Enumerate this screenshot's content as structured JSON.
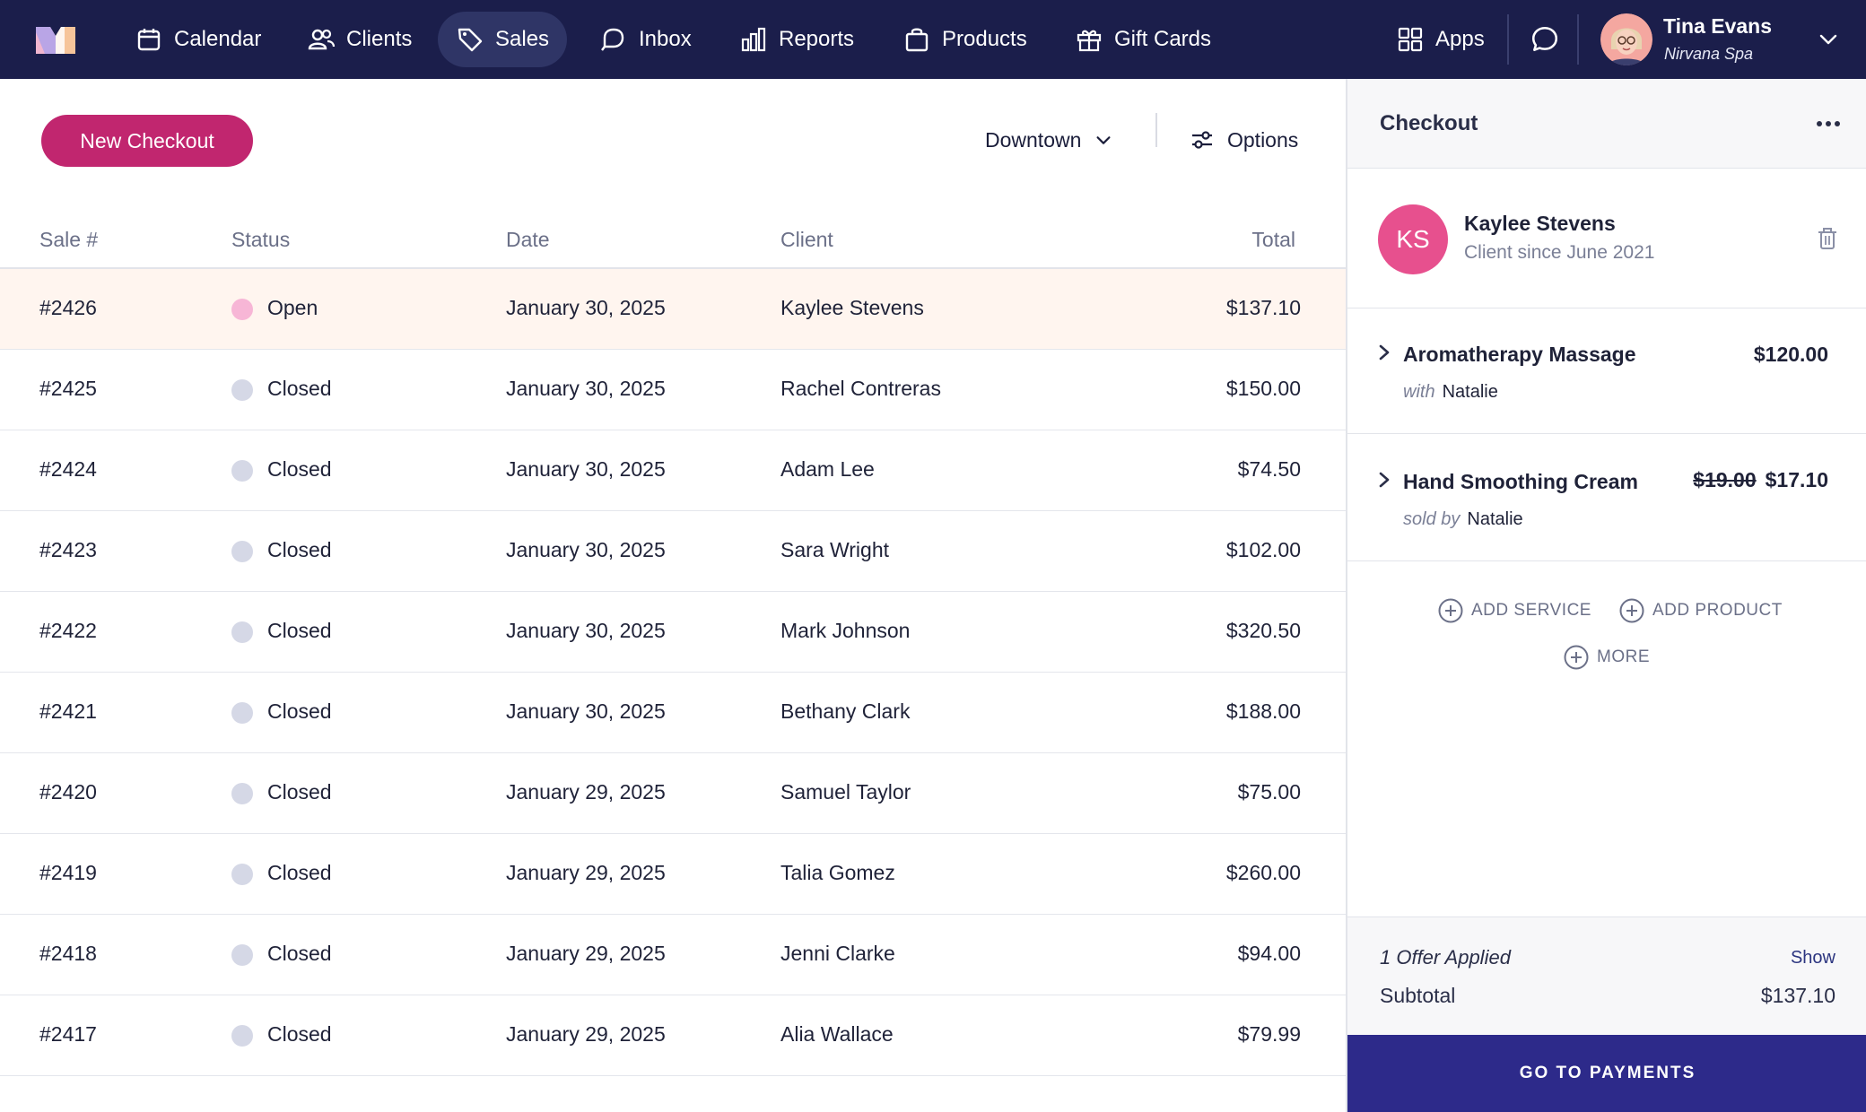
{
  "nav": {
    "items": [
      {
        "label": "Calendar"
      },
      {
        "label": "Clients"
      },
      {
        "label": "Sales"
      },
      {
        "label": "Inbox"
      },
      {
        "label": "Reports"
      },
      {
        "label": "Products"
      },
      {
        "label": "Gift Cards"
      }
    ],
    "apps_label": "Apps",
    "user": {
      "name": "Tina Evans",
      "org": "Nirvana Spa"
    },
    "active_item": "Sales",
    "colors": {
      "bar": "#1b1e4b",
      "active": "#2f3566"
    }
  },
  "toolbar": {
    "new_checkout_label": "New Checkout",
    "location": "Downtown",
    "options_label": "Options",
    "accent_color": "#c1266f"
  },
  "table": {
    "columns": [
      "Sale #",
      "Status",
      "Date",
      "Client",
      "Total"
    ],
    "rows": [
      {
        "sale": "#2426",
        "status": "Open",
        "date": "January 30, 2025",
        "client": "Kaylee Stevens",
        "total": "$137.10"
      },
      {
        "sale": "#2425",
        "status": "Closed",
        "date": "January 30, 2025",
        "client": "Rachel Contreras",
        "total": "$150.00"
      },
      {
        "sale": "#2424",
        "status": "Closed",
        "date": "January 30, 2025",
        "client": "Adam Lee",
        "total": "$74.50"
      },
      {
        "sale": "#2423",
        "status": "Closed",
        "date": "January 30, 2025",
        "client": "Sara Wright",
        "total": "$102.00"
      },
      {
        "sale": "#2422",
        "status": "Closed",
        "date": "January 30, 2025",
        "client": "Mark Johnson",
        "total": "$320.50"
      },
      {
        "sale": "#2421",
        "status": "Closed",
        "date": "January 30, 2025",
        "client": "Bethany Clark",
        "total": "$188.00"
      },
      {
        "sale": "#2420",
        "status": "Closed",
        "date": "January 29, 2025",
        "client": "Samuel Taylor",
        "total": "$75.00"
      },
      {
        "sale": "#2419",
        "status": "Closed",
        "date": "January 29, 2025",
        "client": "Talia Gomez",
        "total": "$260.00"
      },
      {
        "sale": "#2418",
        "status": "Closed",
        "date": "January 29, 2025",
        "client": "Jenni Clarke",
        "total": "$94.00"
      },
      {
        "sale": "#2417",
        "status": "Closed",
        "date": "January 29, 2025",
        "client": "Alia Wallace",
        "total": "$79.99"
      }
    ],
    "selected_sale": "#2426",
    "status_colors": {
      "Open": "#f7b6d6",
      "Closed": "#d5d8e6"
    }
  },
  "checkout": {
    "title": "Checkout",
    "client": {
      "initials": "KS",
      "name": "Kaylee Stevens",
      "since": "Client since June 2021",
      "avatar_color": "#e7508e"
    },
    "items": [
      {
        "name": "Aromatherapy Massage",
        "price": "$120.00",
        "original_price": "",
        "sub_prefix": "with",
        "staff": "Natalie"
      },
      {
        "name": "Hand Smoothing Cream",
        "price": "$17.10",
        "original_price": "$19.00",
        "sub_prefix": "sold by",
        "staff": "Natalie"
      }
    ],
    "add_service_label": "ADD SERVICE",
    "add_product_label": "ADD PRODUCT",
    "more_label": "MORE",
    "offer_text": "1 Offer Applied",
    "show_label": "Show",
    "subtotal_label": "Subtotal",
    "subtotal_value": "$137.10",
    "pay_label": "GO TO PAYMENTS",
    "pay_color": "#2d2a8a"
  }
}
